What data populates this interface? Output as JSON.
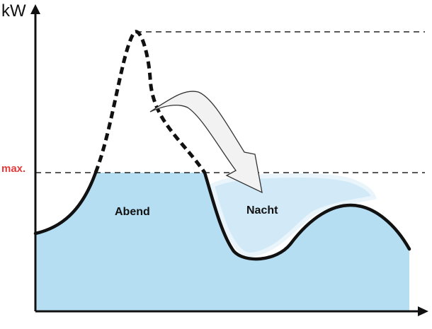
{
  "labels": {
    "y_axis_unit": "kW",
    "max_line": "max.",
    "evening_area": "Abend",
    "night_area": "Nacht"
  },
  "colors": {
    "fill": "#b5def3",
    "shifted_fill": "#d2eaf8",
    "curve": "#111111",
    "max_label": "#e23b3b",
    "arrow_fill": "#f2f2f2",
    "arrow_stroke": "#333333"
  },
  "icons": [
    "shift-arrow-icon",
    "y-axis-arrow-icon",
    "x-axis-arrow-icon"
  ]
}
